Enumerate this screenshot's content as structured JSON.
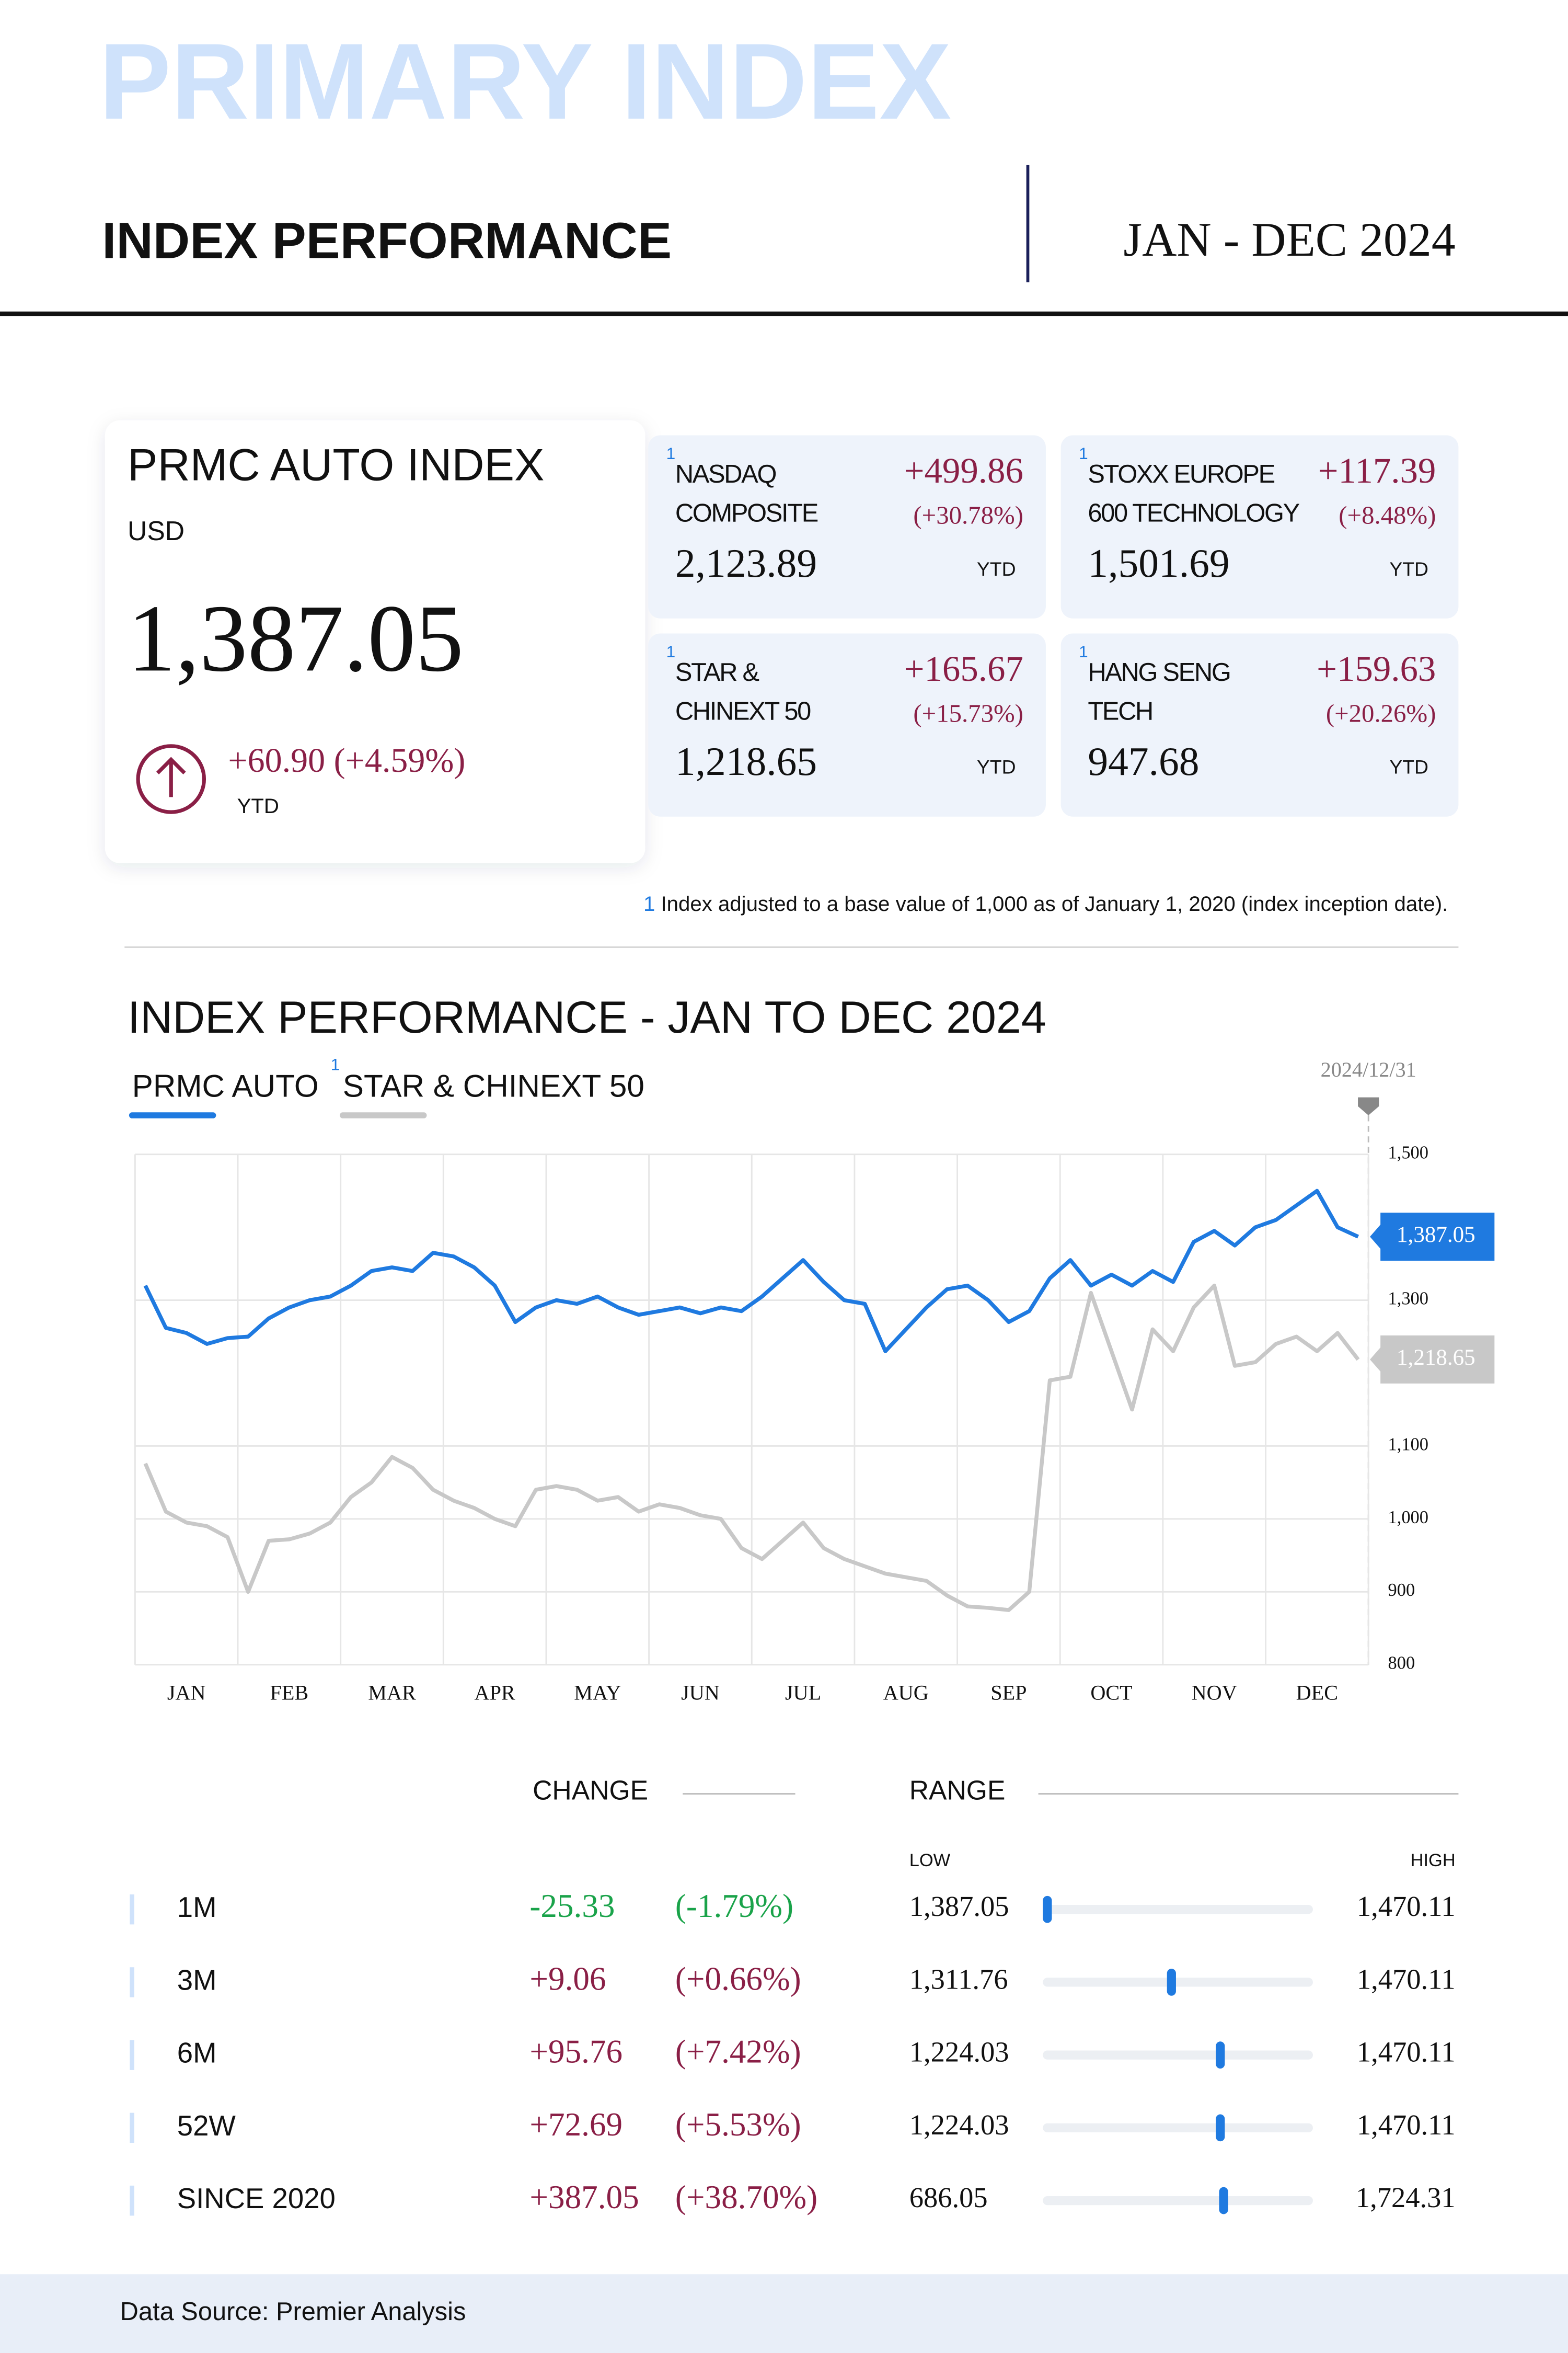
{
  "header": {
    "watermark": "PRIMARY INDEX",
    "title": "INDEX PERFORMANCE",
    "period": "JAN - DEC 2024"
  },
  "footnote_marker": "1",
  "main_index": {
    "name": "PRMC AUTO INDEX",
    "currency": "USD",
    "value": "1,387.05",
    "change": "+60.90",
    "change_pct": "(+4.59%)",
    "period": "YTD"
  },
  "indices": [
    {
      "name": [
        "NASDAQ",
        "COMPOSITE"
      ],
      "change": "+499.86",
      "change_pct": "(+30.78%)",
      "value": "2,123.89",
      "period": "YTD"
    },
    {
      "name": [
        "STOXX EUROPE",
        "600 TECHNOLOGY"
      ],
      "change": "+117.39",
      "change_pct": "(+8.48%)",
      "value": "1,501.69",
      "period": "YTD"
    },
    {
      "name": [
        "STAR &",
        "CHINEXT 50"
      ],
      "change": "+165.67",
      "change_pct": "(+15.73%)",
      "value": "1,218.65",
      "period": "YTD"
    },
    {
      "name": [
        "HANG SENG",
        "TECH"
      ],
      "change": "+159.63",
      "change_pct": "(+20.26%)",
      "value": "947.68",
      "period": "YTD"
    }
  ],
  "footnote": "Index adjusted to a base value of 1,000 as of January 1, 2020 (index inception date).",
  "chart_data": {
    "type": "line",
    "title": "INDEX PERFORMANCE - JAN TO DEC 2024",
    "date_label": "2024/12/31",
    "categories": [
      null,
      null,
      "JAN",
      null,
      null,
      null,
      null,
      "FEB",
      null,
      null,
      null,
      null,
      "MAR",
      null,
      null,
      null,
      null,
      "APR",
      null,
      null,
      null,
      null,
      "MAY",
      null,
      null,
      null,
      null,
      "JUN",
      null,
      null,
      null,
      null,
      "JUL",
      null,
      null,
      null,
      null,
      "AUG",
      null,
      null,
      null,
      null,
      "SEP",
      null,
      null,
      null,
      null,
      "OCT",
      null,
      null,
      null,
      null,
      "NOV",
      null,
      null,
      null,
      null,
      "DEC",
      null,
      null
    ],
    "series": [
      {
        "name": "PRMC AUTO",
        "color": "#1f7ae0",
        "values": [
          1320,
          1262,
          1255,
          1240,
          1248,
          1250,
          1275,
          1290,
          1300,
          1305,
          1320,
          1340,
          1345,
          1340,
          1365,
          1360,
          1345,
          1320,
          1270,
          1290,
          1300,
          1295,
          1305,
          1290,
          1280,
          1285,
          1290,
          1282,
          1290,
          1285,
          1305,
          1330,
          1355,
          1325,
          1300,
          1295,
          1230,
          1260,
          1290,
          1315,
          1320,
          1300,
          1270,
          1285,
          1330,
          1355,
          1320,
          1335,
          1320,
          1340,
          1325,
          1380,
          1395,
          1375,
          1400,
          1410,
          1430,
          1450,
          1400,
          1387.05
        ],
        "value_labels": [
          null,
          null,
          null,
          null,
          null,
          null,
          null,
          null,
          null,
          null,
          null,
          null,
          null,
          null,
          null,
          null,
          null,
          null,
          null,
          null,
          null,
          null,
          null,
          null,
          null,
          null,
          null,
          null,
          null,
          null,
          null,
          null,
          null,
          null,
          null,
          null,
          null,
          null,
          null,
          null,
          null,
          null,
          null,
          null,
          null,
          null,
          null,
          null,
          null,
          null,
          null,
          null,
          null,
          null,
          null,
          null,
          null,
          null,
          null,
          "1,387.05"
        ]
      },
      {
        "name": "STAR & CHINEXT 50",
        "color": "#c8c8c8",
        "values": [
          1076,
          1010,
          995,
          990,
          975,
          900,
          970,
          972,
          980,
          995,
          1030,
          1050,
          1085,
          1070,
          1040,
          1025,
          1015,
          1000,
          990,
          1040,
          1045,
          1040,
          1025,
          1030,
          1010,
          1020,
          1015,
          1005,
          1000,
          960,
          945,
          970,
          995,
          960,
          945,
          935,
          925,
          920,
          915,
          895,
          880,
          878,
          875,
          900,
          1190,
          1195,
          1310,
          1230,
          1150,
          1260,
          1230,
          1290,
          1320,
          1210,
          1215,
          1240,
          1250,
          1230,
          1255,
          1218.65
        ],
        "value_labels": [
          null,
          null,
          null,
          null,
          null,
          null,
          null,
          null,
          null,
          null,
          null,
          null,
          null,
          null,
          null,
          null,
          null,
          null,
          null,
          null,
          null,
          null,
          null,
          null,
          null,
          null,
          null,
          null,
          null,
          null,
          null,
          null,
          null,
          null,
          null,
          null,
          null,
          null,
          null,
          null,
          null,
          null,
          null,
          null,
          null,
          null,
          null,
          null,
          null,
          null,
          null,
          null,
          null,
          null,
          null,
          null,
          null,
          null,
          null,
          "1,218.65"
        ]
      }
    ],
    "ylim": [
      800,
      1500
    ],
    "yticks": [
      800,
      900,
      {
        "value": 1000,
        "label": "1,000"
      },
      {
        "value": 1100,
        "label": "1,100"
      },
      {
        "value": 1300,
        "label": "1,300"
      },
      {
        "value": 1500,
        "label": "1,500"
      }
    ],
    "grid": true
  },
  "table": {
    "change_header": "CHANGE",
    "range_header": "RANGE",
    "low_header": "LOW",
    "high_header": "HIGH",
    "rows": [
      {
        "period": "1M",
        "change": "-25.33",
        "change_pct": "(-1.79%)",
        "low": "1,387.05",
        "high": "1,470.11"
      },
      {
        "period": "3M",
        "change": "+9.06",
        "change_pct": "(+0.66%)",
        "low": "1,311.76",
        "high": "1,470.11"
      },
      {
        "period": "6M",
        "change": "+95.76",
        "change_pct": "(+7.42%)",
        "low": "1,224.03",
        "high": "1,470.11"
      },
      {
        "period": "52W",
        "change": "+72.69",
        "change_pct": "(+5.53%)",
        "low": "1,224.03",
        "high": "1,470.11"
      },
      {
        "period": "SINCE 2020",
        "change": "+387.05",
        "change_pct": "(+38.70%)",
        "low": "686.05",
        "high": "1,724.31"
      }
    ]
  },
  "footer": {
    "source": "Data Source: Premier Analysis"
  }
}
